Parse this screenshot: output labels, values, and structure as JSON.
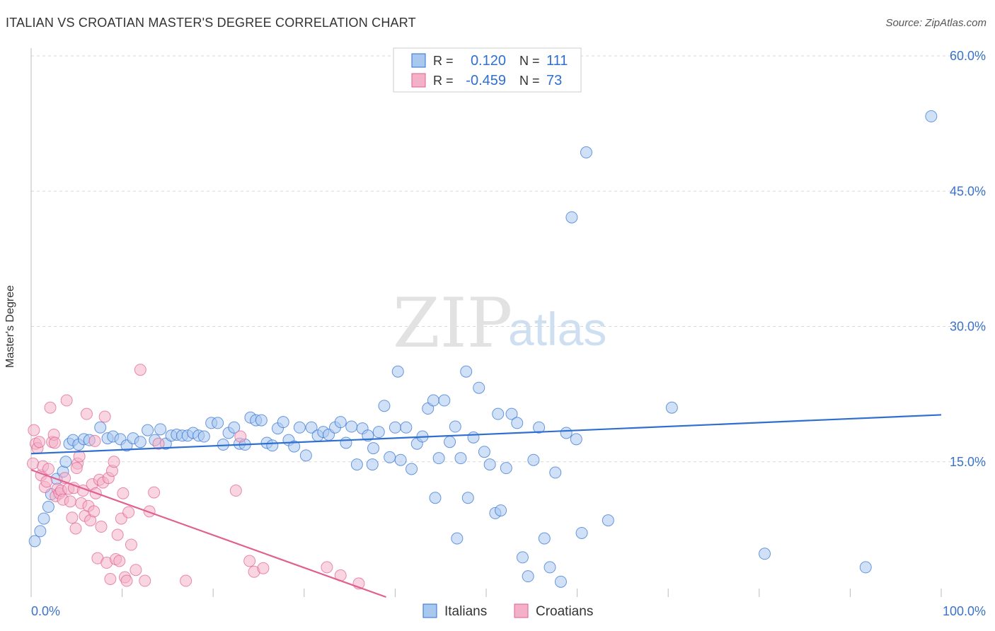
{
  "title": "ITALIAN VS CROATIAN MASTER'S DEGREE CORRELATION CHART",
  "source": "Source: ZipAtlas.com",
  "watermark": {
    "zip": "ZIP",
    "atlas": "atlas"
  },
  "colors": {
    "blue": "#2f6fd0",
    "blue_fill": "#a9c8f0",
    "pink": "#e0608f",
    "pink_fill": "#f4b0c8",
    "axis_label": "#3a72c9",
    "grid": "#d8d8d8"
  },
  "legend_top": [
    {
      "r_label": "R =",
      "r_value": "0.120",
      "n_label": "N =",
      "n_value": "111"
    },
    {
      "r_label": "R =",
      "r_value": "-0.459",
      "n_label": "N =",
      "n_value": "73"
    }
  ],
  "chart_data": {
    "type": "scatter",
    "title": "ITALIAN VS CROATIAN MASTER'S DEGREE CORRELATION CHART",
    "xlabel": "",
    "ylabel": "Master's Degree",
    "xlim": [
      0,
      100
    ],
    "ylim": [
      0,
      61
    ],
    "x_tick_labels": [
      "0.0%",
      "100.0%"
    ],
    "y_ticks": [
      15,
      30,
      45,
      60
    ],
    "y_tick_labels": [
      "15.0%",
      "30.0%",
      "45.0%",
      "60.0%"
    ],
    "grid": true,
    "legend_position": "bottom-center",
    "series": [
      {
        "name": "Italians",
        "color": "#2f6fd0",
        "trend": {
          "x": [
            0,
            100
          ],
          "y": [
            15.9,
            20.2
          ]
        },
        "points": [
          [
            0.4,
            6.2
          ],
          [
            1.0,
            7.3
          ],
          [
            1.4,
            8.7
          ],
          [
            1.9,
            10.0
          ],
          [
            2.2,
            11.4
          ],
          [
            2.8,
            13.1
          ],
          [
            3.5,
            13.9
          ],
          [
            3.8,
            15.0
          ],
          [
            4.2,
            17.0
          ],
          [
            4.6,
            17.4
          ],
          [
            5.2,
            16.9
          ],
          [
            5.8,
            17.5
          ],
          [
            6.4,
            17.4
          ],
          [
            7.6,
            18.8
          ],
          [
            8.4,
            17.6
          ],
          [
            9.0,
            17.8
          ],
          [
            9.8,
            17.5
          ],
          [
            10.5,
            16.8
          ],
          [
            11.2,
            17.6
          ],
          [
            12.0,
            17.2
          ],
          [
            12.8,
            18.5
          ],
          [
            13.6,
            17.4
          ],
          [
            14.2,
            18.6
          ],
          [
            14.8,
            17.0
          ],
          [
            15.4,
            17.9
          ],
          [
            16.0,
            18.0
          ],
          [
            16.6,
            17.9
          ],
          [
            17.2,
            17.9
          ],
          [
            17.8,
            18.2
          ],
          [
            18.4,
            17.9
          ],
          [
            19.0,
            17.8
          ],
          [
            19.8,
            19.3
          ],
          [
            20.5,
            19.3
          ],
          [
            21.1,
            16.9
          ],
          [
            21.7,
            18.2
          ],
          [
            22.3,
            18.8
          ],
          [
            22.9,
            17.0
          ],
          [
            23.5,
            16.9
          ],
          [
            24.1,
            19.9
          ],
          [
            24.7,
            19.6
          ],
          [
            25.3,
            19.6
          ],
          [
            25.9,
            17.1
          ],
          [
            26.5,
            16.8
          ],
          [
            27.1,
            18.7
          ],
          [
            27.7,
            19.4
          ],
          [
            28.3,
            17.4
          ],
          [
            28.9,
            16.7
          ],
          [
            29.5,
            18.8
          ],
          [
            30.2,
            15.7
          ],
          [
            30.8,
            18.8
          ],
          [
            31.5,
            17.9
          ],
          [
            32.1,
            18.3
          ],
          [
            32.7,
            18.0
          ],
          [
            33.4,
            18.8
          ],
          [
            34.0,
            19.4
          ],
          [
            34.6,
            17.1
          ],
          [
            35.2,
            18.9
          ],
          [
            35.8,
            14.7
          ],
          [
            36.4,
            18.7
          ],
          [
            37.0,
            17.9
          ],
          [
            37.6,
            16.5
          ],
          [
            38.2,
            18.3
          ],
          [
            38.8,
            21.2
          ],
          [
            39.4,
            15.5
          ],
          [
            40.0,
            18.8
          ],
          [
            40.6,
            15.2
          ],
          [
            41.2,
            18.8
          ],
          [
            41.8,
            14.2
          ],
          [
            42.4,
            17.0
          ],
          [
            43.0,
            17.8
          ],
          [
            43.6,
            20.9
          ],
          [
            44.2,
            21.8
          ],
          [
            44.8,
            15.4
          ],
          [
            45.4,
            21.8
          ],
          [
            46.0,
            17.2
          ],
          [
            46.6,
            18.9
          ],
          [
            47.2,
            15.4
          ],
          [
            47.8,
            25.0
          ],
          [
            48.0,
            11.0
          ],
          [
            48.6,
            17.7
          ],
          [
            49.2,
            23.2
          ],
          [
            49.8,
            16.1
          ],
          [
            50.4,
            14.7
          ],
          [
            51.0,
            9.3
          ],
          [
            51.6,
            9.6
          ],
          [
            52.2,
            14.3
          ],
          [
            52.8,
            20.3
          ],
          [
            53.4,
            19.3
          ],
          [
            54.0,
            4.4
          ],
          [
            54.6,
            2.3
          ],
          [
            55.2,
            15.2
          ],
          [
            55.8,
            18.8
          ],
          [
            56.4,
            6.5
          ],
          [
            57.0,
            3.3
          ],
          [
            57.6,
            13.8
          ],
          [
            58.2,
            1.7
          ],
          [
            58.8,
            18.2
          ],
          [
            59.4,
            42.1
          ],
          [
            59.9,
            17.5
          ],
          [
            60.5,
            7.1
          ],
          [
            61.0,
            49.3
          ],
          [
            63.4,
            8.5
          ],
          [
            70.4,
            21.0
          ],
          [
            80.6,
            4.8
          ],
          [
            91.7,
            3.3
          ],
          [
            98.9,
            53.3
          ],
          [
            37.5,
            14.7
          ],
          [
            40.3,
            25.0
          ],
          [
            44.4,
            11.0
          ],
          [
            46.8,
            6.5
          ],
          [
            51.3,
            20.3
          ]
        ]
      },
      {
        "name": "Croatians",
        "color": "#e0608f",
        "trend": {
          "x": [
            0,
            39
          ],
          "y": [
            14.1,
            0
          ]
        },
        "points": [
          [
            0.2,
            14.8
          ],
          [
            0.3,
            18.5
          ],
          [
            0.5,
            17.0
          ],
          [
            0.7,
            16.5
          ],
          [
            0.9,
            17.2
          ],
          [
            1.1,
            13.5
          ],
          [
            1.3,
            14.5
          ],
          [
            1.5,
            12.2
          ],
          [
            1.7,
            12.8
          ],
          [
            1.9,
            14.2
          ],
          [
            2.1,
            21.0
          ],
          [
            2.3,
            17.2
          ],
          [
            2.5,
            18.0
          ],
          [
            2.7,
            11.2
          ],
          [
            2.9,
            12.0
          ],
          [
            3.1,
            11.5
          ],
          [
            3.3,
            11.8
          ],
          [
            3.5,
            10.8
          ],
          [
            3.7,
            13.2
          ],
          [
            3.9,
            21.8
          ],
          [
            4.1,
            12.0
          ],
          [
            4.3,
            10.6
          ],
          [
            4.5,
            8.8
          ],
          [
            4.7,
            12.1
          ],
          [
            4.9,
            7.6
          ],
          [
            5.1,
            14.8
          ],
          [
            5.3,
            15.6
          ],
          [
            5.5,
            10.4
          ],
          [
            5.7,
            11.8
          ],
          [
            5.9,
            9.0
          ],
          [
            6.1,
            20.3
          ],
          [
            6.3,
            10.1
          ],
          [
            6.5,
            8.5
          ],
          [
            6.7,
            12.5
          ],
          [
            6.9,
            9.5
          ],
          [
            7.1,
            11.5
          ],
          [
            7.3,
            4.3
          ],
          [
            7.5,
            13.0
          ],
          [
            7.7,
            7.8
          ],
          [
            7.9,
            12.7
          ],
          [
            8.1,
            20.0
          ],
          [
            8.3,
            3.8
          ],
          [
            8.5,
            13.2
          ],
          [
            8.7,
            2.0
          ],
          [
            8.9,
            14.0
          ],
          [
            9.1,
            15.0
          ],
          [
            9.3,
            4.2
          ],
          [
            9.5,
            6.9
          ],
          [
            9.7,
            4.0
          ],
          [
            9.9,
            8.7
          ],
          [
            10.1,
            11.5
          ],
          [
            10.3,
            2.2
          ],
          [
            10.5,
            1.8
          ],
          [
            10.7,
            9.4
          ],
          [
            11.0,
            5.8
          ],
          [
            11.5,
            3.0
          ],
          [
            12.0,
            25.2
          ],
          [
            12.5,
            1.8
          ],
          [
            13.0,
            9.5
          ],
          [
            13.5,
            11.6
          ],
          [
            14.0,
            17.0
          ],
          [
            17.0,
            1.8
          ],
          [
            22.5,
            11.8
          ],
          [
            23.0,
            17.8
          ],
          [
            24.0,
            4.0
          ],
          [
            24.5,
            2.8
          ],
          [
            25.5,
            3.2
          ],
          [
            32.5,
            3.3
          ],
          [
            34.0,
            2.4
          ],
          [
            36.0,
            1.5
          ],
          [
            2.6,
            17.1
          ],
          [
            5.0,
            14.3
          ],
          [
            7.0,
            17.3
          ]
        ]
      }
    ]
  }
}
